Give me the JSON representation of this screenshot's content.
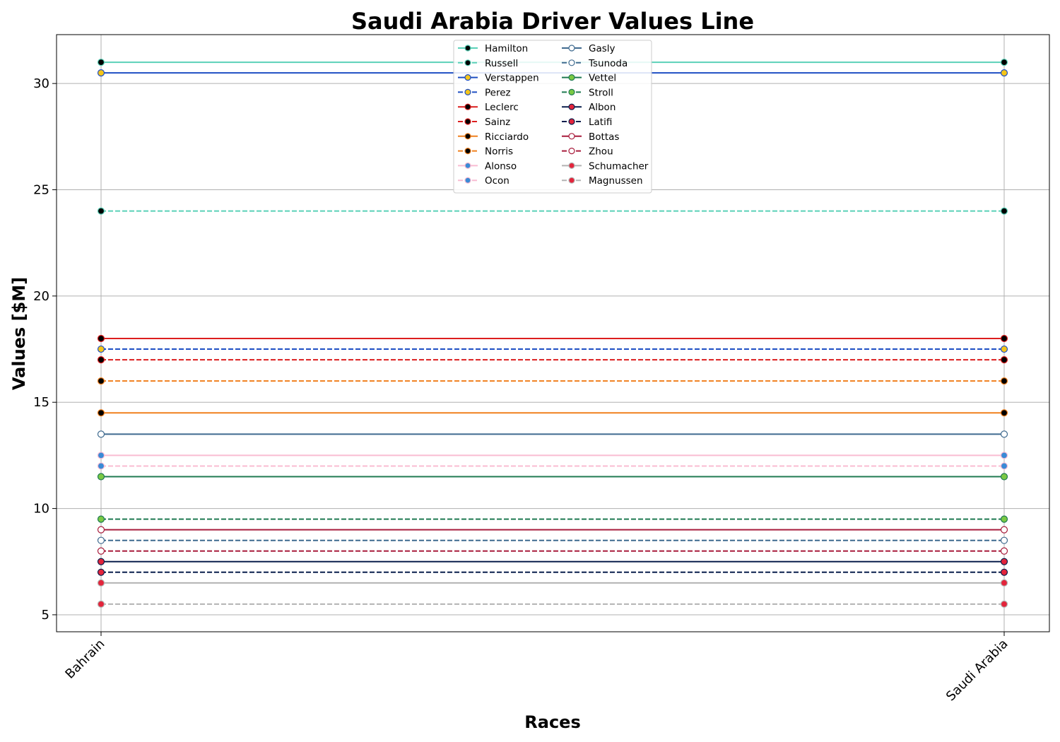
{
  "chart_data": {
    "type": "line",
    "title": "Saudi Arabia Driver Values Line",
    "xlabel": "Races",
    "ylabel": "Values [$M]",
    "categories": [
      "Bahrain",
      "Saudi Arabia"
    ],
    "ylim": [
      4.2,
      32.3
    ],
    "yticks": [
      5,
      10,
      15,
      20,
      25,
      30
    ],
    "grid": true,
    "legend_position": "upper-center",
    "series": [
      {
        "name": "Hamilton",
        "values": [
          31,
          31
        ],
        "color": "#5ad1b8",
        "dash": false,
        "marker_face": "#000000",
        "marker_edge": "#5ad1b8"
      },
      {
        "name": "Russell",
        "values": [
          24,
          24
        ],
        "color": "#5ad1b8",
        "dash": true,
        "marker_face": "#000000",
        "marker_edge": "#5ad1b8"
      },
      {
        "name": "Verstappen",
        "values": [
          30.5,
          30.5
        ],
        "color": "#1e4fc4",
        "dash": false,
        "marker_face": "#f5c518",
        "marker_edge": "#1e4fc4"
      },
      {
        "name": "Perez",
        "values": [
          17.5,
          17.5
        ],
        "color": "#1e4fc4",
        "dash": true,
        "marker_face": "#f5c518",
        "marker_edge": "#1e4fc4"
      },
      {
        "name": "Leclerc",
        "values": [
          18,
          18
        ],
        "color": "#dc1e1e",
        "dash": false,
        "marker_face": "#000000",
        "marker_edge": "#dc1e1e"
      },
      {
        "name": "Sainz",
        "values": [
          17,
          17
        ],
        "color": "#dc1e1e",
        "dash": true,
        "marker_face": "#000000",
        "marker_edge": "#dc1e1e"
      },
      {
        "name": "Ricciardo",
        "values": [
          14.5,
          14.5
        ],
        "color": "#f0801e",
        "dash": false,
        "marker_face": "#000000",
        "marker_edge": "#f0801e"
      },
      {
        "name": "Norris",
        "values": [
          16,
          16
        ],
        "color": "#f0801e",
        "dash": true,
        "marker_face": "#000000",
        "marker_edge": "#f0801e"
      },
      {
        "name": "Alonso",
        "values": [
          12.5,
          12.5
        ],
        "color": "#f9bcd2",
        "dash": false,
        "marker_face": "#3a8ad6",
        "marker_edge": "#f9bcd2"
      },
      {
        "name": "Ocon",
        "values": [
          12,
          12
        ],
        "color": "#f9bcd2",
        "dash": true,
        "marker_face": "#3a8ad6",
        "marker_edge": "#f9bcd2"
      },
      {
        "name": "Gasly",
        "values": [
          13.5,
          13.5
        ],
        "color": "#3f6a8f",
        "dash": false,
        "marker_face": "#ffffff",
        "marker_edge": "#3f6a8f"
      },
      {
        "name": "Tsunoda",
        "values": [
          8.5,
          8.5
        ],
        "color": "#3f6a8f",
        "dash": true,
        "marker_face": "#ffffff",
        "marker_edge": "#3f6a8f"
      },
      {
        "name": "Vettel",
        "values": [
          11.5,
          11.5
        ],
        "color": "#1f7a52",
        "dash": false,
        "marker_face": "#7ac943",
        "marker_edge": "#1f7a52"
      },
      {
        "name": "Stroll",
        "values": [
          9.5,
          9.5
        ],
        "color": "#1f7a52",
        "dash": true,
        "marker_face": "#7ac943",
        "marker_edge": "#1f7a52"
      },
      {
        "name": "Albon",
        "values": [
          7.5,
          7.5
        ],
        "color": "#0a1f4d",
        "dash": false,
        "marker_face": "#e3243b",
        "marker_edge": "#0a1f4d"
      },
      {
        "name": "Latifi",
        "values": [
          7,
          7
        ],
        "color": "#0a1f4d",
        "dash": true,
        "marker_face": "#e3243b",
        "marker_edge": "#0a1f4d"
      },
      {
        "name": "Bottas",
        "values": [
          9,
          9
        ],
        "color": "#a81c3c",
        "dash": false,
        "marker_face": "#ffffff",
        "marker_edge": "#a81c3c"
      },
      {
        "name": "Zhou",
        "values": [
          8,
          8
        ],
        "color": "#a81c3c",
        "dash": true,
        "marker_face": "#ffffff",
        "marker_edge": "#a81c3c"
      },
      {
        "name": "Schumacher",
        "values": [
          6.5,
          6.5
        ],
        "color": "#b3b3b3",
        "dash": false,
        "marker_face": "#e3243b",
        "marker_edge": "#b3b3b3"
      },
      {
        "name": "Magnussen",
        "values": [
          5.5,
          5.5
        ],
        "color": "#b3b3b3",
        "dash": true,
        "marker_face": "#e3243b",
        "marker_edge": "#b3b3b3"
      }
    ]
  }
}
